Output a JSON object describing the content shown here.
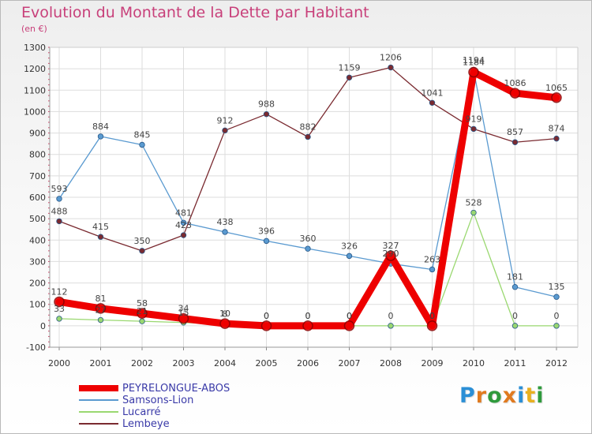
{
  "title": "Evolution du Montant de la Dette par Habitant",
  "subtitle": "(en €)",
  "logo": {
    "letters": [
      "P",
      "r",
      "o",
      "x",
      "i",
      "t",
      "i"
    ],
    "colors": [
      "#2b8fd6",
      "#e07a1f",
      "#2f9a3c",
      "#e07a1f",
      "#2b8fd6",
      "#e8b020",
      "#2f9a3c"
    ]
  },
  "chart_data": {
    "type": "line",
    "x": [
      "2000",
      "2001",
      "2002",
      "2003",
      "2004",
      "2005",
      "2006",
      "2007",
      "2008",
      "2009",
      "2010",
      "2011",
      "2012"
    ],
    "ylim": [
      -100,
      1300
    ],
    "yticks": [
      "-100",
      "0",
      "100",
      "200",
      "300",
      "400",
      "500",
      "600",
      "700",
      "800",
      "900",
      "1000",
      "1100",
      "1200",
      "1300"
    ],
    "grid": true,
    "legend_position": "bottom-left",
    "series": [
      {
        "name": "PEYRELONGUE-ABOS",
        "color": "#ee0000",
        "emphasis": true,
        "values": [
          112,
          81,
          58,
          34,
          10,
          0,
          0,
          0,
          327,
          0,
          1184,
          1086,
          1065
        ],
        "labels": [
          "112",
          "81",
          "58",
          "34",
          "10",
          "0",
          "0",
          "0",
          "327",
          "0",
          "1184",
          "1086",
          "1065"
        ]
      },
      {
        "name": "Samsons-Lion",
        "color": "#5a9ad0",
        "values": [
          593,
          884,
          845,
          481,
          438,
          396,
          360,
          326,
          290,
          263,
          1194,
          181,
          135
        ],
        "labels": [
          "593",
          "884",
          "845",
          "481",
          "438",
          "396",
          "360",
          "326",
          "290",
          "263",
          "1194",
          "181",
          "135"
        ]
      },
      {
        "name": "Lucarré",
        "color": "#9ad870",
        "values": [
          33,
          27,
          21,
          15,
          8,
          0,
          0,
          0,
          0,
          0,
          528,
          0,
          0
        ],
        "labels": [
          "33",
          "27",
          "21",
          "15",
          "8",
          "0",
          "0",
          "0",
          "0",
          "0",
          "528",
          "0",
          "0"
        ]
      },
      {
        "name": "Lembeye",
        "color": "#7a2a30",
        "values": [
          488,
          415,
          350,
          423,
          912,
          988,
          882,
          1159,
          1206,
          1041,
          919,
          857,
          874
        ],
        "labels": [
          "488",
          "415",
          "350",
          "423",
          "912",
          "988",
          "882",
          "1159",
          "1206",
          "1041",
          "919",
          "857",
          "874"
        ]
      }
    ]
  }
}
